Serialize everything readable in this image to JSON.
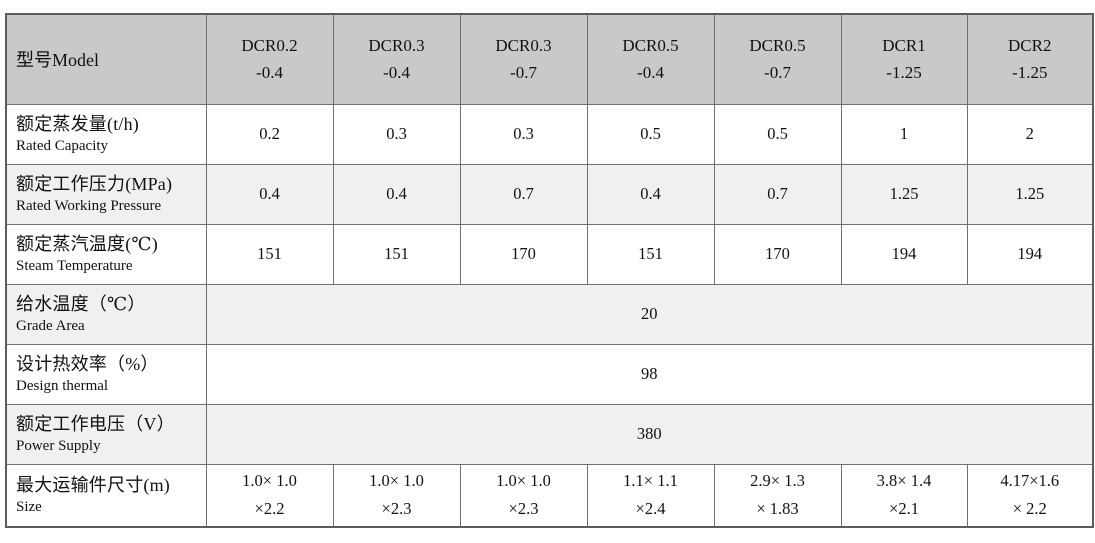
{
  "table": {
    "corner_label": "型号Model",
    "models": [
      {
        "name": "DCR0.2",
        "suffix": "-0.4"
      },
      {
        "name": "DCR0.3",
        "suffix": "-0.4"
      },
      {
        "name": "DCR0.3",
        "suffix": "-0.7"
      },
      {
        "name": "DCR0.5",
        "suffix": "-0.4"
      },
      {
        "name": "DCR0.5",
        "suffix": "-0.7"
      },
      {
        "name": "DCR1",
        "suffix": "-1.25"
      },
      {
        "name": "DCR2",
        "suffix": "-1.25"
      }
    ],
    "rows": [
      {
        "label_zh": "额定蒸发量(t/h)",
        "label_en": "Rated Capacity",
        "values": [
          "0.2",
          "0.3",
          "0.3",
          "0.5",
          "0.5",
          "1",
          "2"
        ]
      },
      {
        "label_zh": "额定工作压力(MPa)",
        "label_en": "Rated Working Pressure",
        "values": [
          "0.4",
          "0.4",
          "0.7",
          "0.4",
          "0.7",
          "1.25",
          "1.25"
        ]
      },
      {
        "label_zh": "额定蒸汽温度(℃)",
        "label_en": "Steam Temperature",
        "values": [
          "151",
          "151",
          "170",
          "151",
          "170",
          "194",
          "194"
        ]
      },
      {
        "label_zh": "给水温度（℃）",
        "label_en": "Grade Area",
        "merged_value": "20"
      },
      {
        "label_zh": "设计热效率（%）",
        "label_en": "Design thermal",
        "merged_value": "98"
      },
      {
        "label_zh": "额定工作电压（V）",
        "label_en": "Power Supply",
        "merged_value": "380"
      },
      {
        "label_zh": "最大运输件尺寸(m)",
        "label_en": "Size",
        "values": [
          "1.0× 1.0\n×2.2",
          "1.0× 1.0\n×2.3",
          "1.0× 1.0\n×2.3",
          "1.1× 1.1\n×2.4",
          "2.9× 1.3\n× 1.83",
          "3.8× 1.4\n×2.1",
          "4.17×1.6\n× 2.2"
        ]
      }
    ],
    "colors": {
      "header_bg": "#c9c9c9",
      "stripe_bg": "#f0f0ef",
      "row_bg": "#ffffff",
      "border": "#707070",
      "outer_border": "#5c5c5c",
      "text": "#111111"
    }
  }
}
